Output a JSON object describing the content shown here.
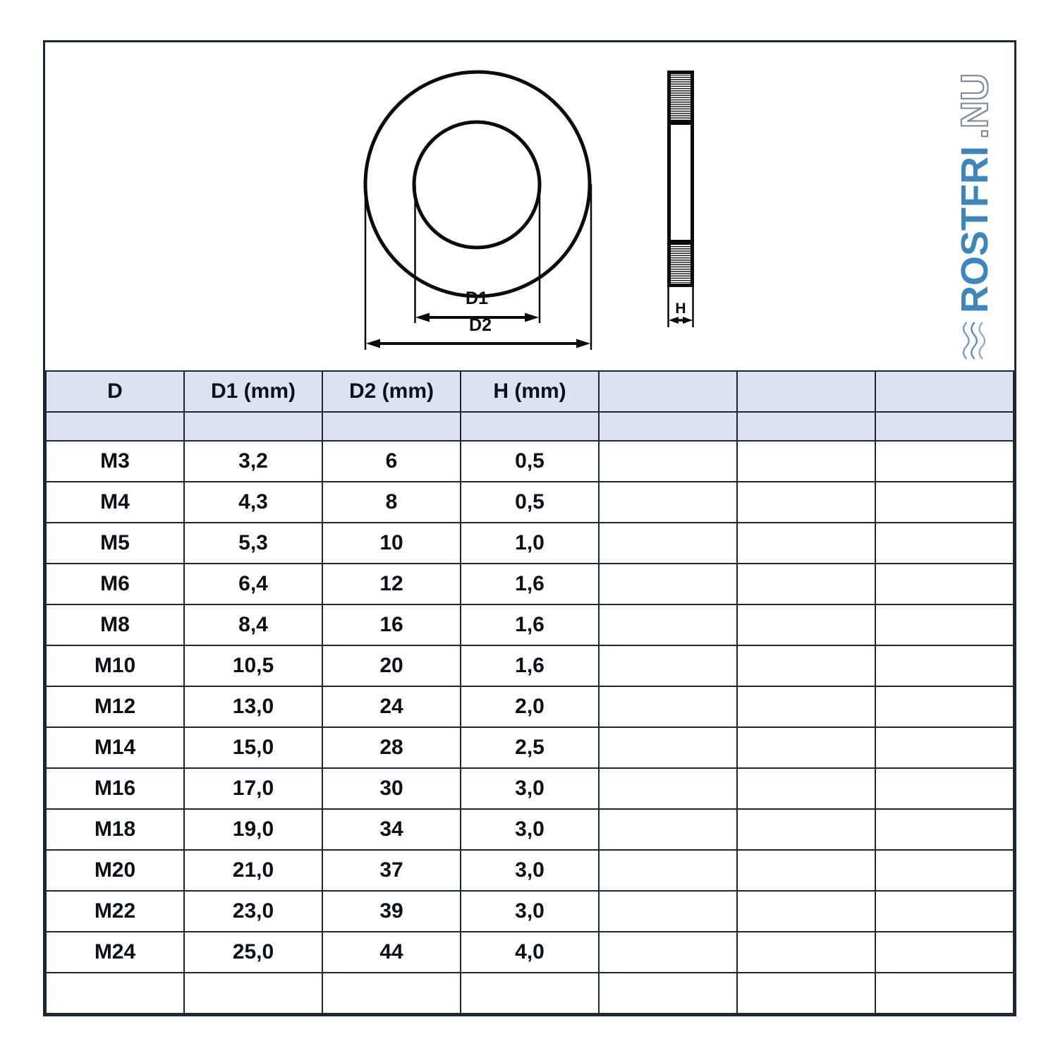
{
  "page": {
    "background": "#ffffff",
    "frame_border_color": "#1c2836"
  },
  "diagram": {
    "labels": {
      "d1": "D1",
      "d2": "D2",
      "h": "H"
    },
    "line_color": "#0b0b0b"
  },
  "logo": {
    "text_primary": "ROSTFRI",
    "text_secondary": ".NU",
    "blue": "#3d86bc",
    "outline_gray": "#7d8894",
    "icon": "waves-icon"
  },
  "table": {
    "header_bg": "#dbe2f1",
    "columns": [
      "D",
      "D1 (mm)",
      "D2 (mm)",
      "H (mm)",
      "",
      "",
      ""
    ],
    "rows": [
      [
        "M3",
        "3,2",
        "6",
        "0,5",
        "",
        "",
        ""
      ],
      [
        "M4",
        "4,3",
        "8",
        "0,5",
        "",
        "",
        ""
      ],
      [
        "M5",
        "5,3",
        "10",
        "1,0",
        "",
        "",
        ""
      ],
      [
        "M6",
        "6,4",
        "12",
        "1,6",
        "",
        "",
        ""
      ],
      [
        "M8",
        "8,4",
        "16",
        "1,6",
        "",
        "",
        ""
      ],
      [
        "M10",
        "10,5",
        "20",
        "1,6",
        "",
        "",
        ""
      ],
      [
        "M12",
        "13,0",
        "24",
        "2,0",
        "",
        "",
        ""
      ],
      [
        "M14",
        "15,0",
        "28",
        "2,5",
        "",
        "",
        ""
      ],
      [
        "M16",
        "17,0",
        "30",
        "3,0",
        "",
        "",
        ""
      ],
      [
        "M18",
        "19,0",
        "34",
        "3,0",
        "",
        "",
        ""
      ],
      [
        "M20",
        "21,0",
        "37",
        "3,0",
        "",
        "",
        ""
      ],
      [
        "M22",
        "23,0",
        "39",
        "3,0",
        "",
        "",
        ""
      ],
      [
        "M24",
        "25,0",
        "44",
        "4,0",
        "",
        "",
        ""
      ]
    ]
  }
}
